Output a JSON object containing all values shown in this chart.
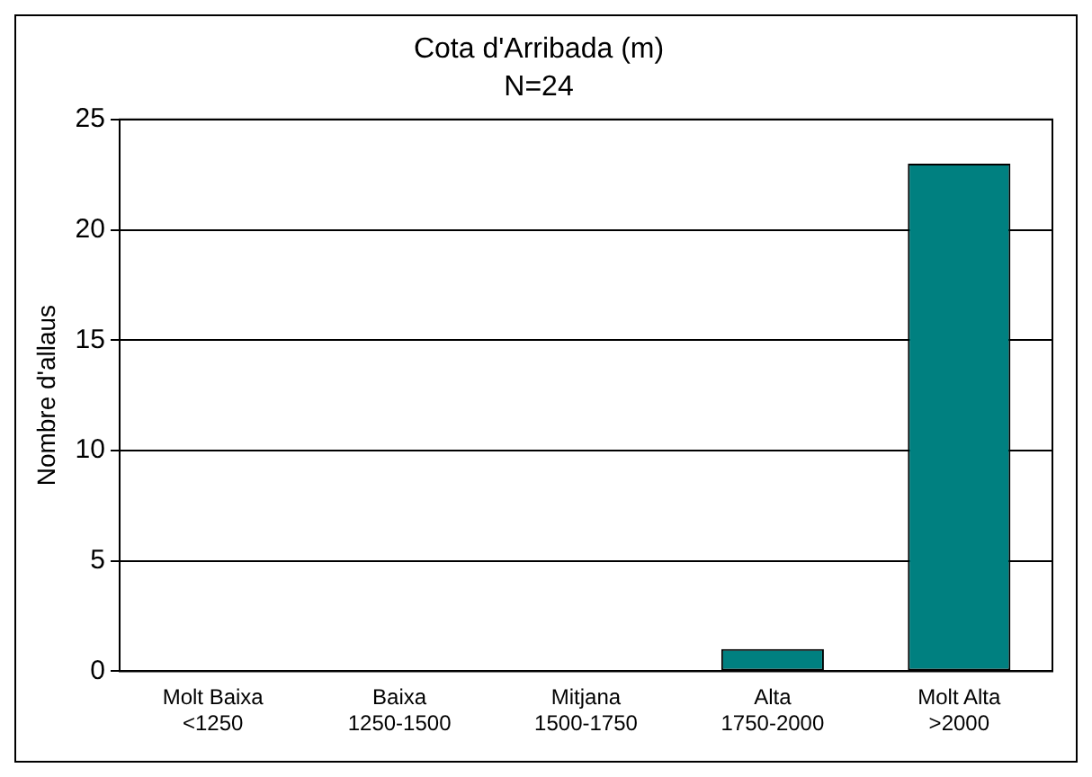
{
  "chart_data": {
    "type": "bar",
    "title": "Cota d'Arribada (m)",
    "subtitle": "N=24",
    "ylabel": "Nombre d'allaus",
    "categories": [
      "Molt Baixa\n<1250",
      "Baixa\n1250-1500",
      "Mitjana\n1500-1750",
      "Alta\n1750-2000",
      "Molt Alta\n>2000"
    ],
    "values": [
      0,
      0,
      0,
      1,
      23
    ],
    "color": "#008080",
    "ylim": [
      0,
      25
    ],
    "yticks": [
      0,
      5,
      10,
      15,
      20,
      25
    ],
    "grid": "y",
    "legend": false
  }
}
